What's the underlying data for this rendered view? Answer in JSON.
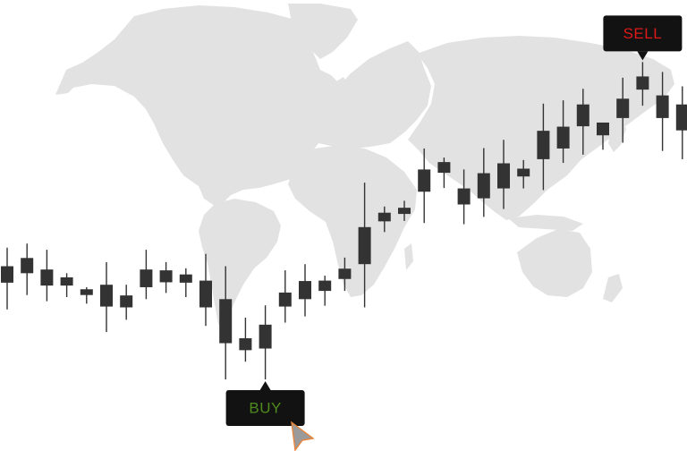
{
  "colors": {
    "background": "#ffffff",
    "map": "#e2e2e2",
    "candle": "#333333",
    "tag_bg": "#121212",
    "sell_text": "#e01818",
    "buy_text": "#4f8a1e",
    "cursor_fill": "#9a9a9a",
    "cursor_stroke": "#e8833a"
  },
  "annotations": {
    "sell": {
      "label": "SELL"
    },
    "buy": {
      "label": "BUY"
    }
  },
  "icons": {
    "cursor": "pointer-cursor-icon",
    "background": "world-map"
  },
  "chart_data": {
    "type": "candlestick",
    "title": "",
    "xlabel": "",
    "ylabel": "",
    "grid": false,
    "legend": "none",
    "ylim": [
      0,
      100
    ],
    "candles": [
      {
        "o": 33.5,
        "h": 42.0,
        "l": 27.0,
        "c": 37.5
      },
      {
        "o": 35.8,
        "h": 43.0,
        "l": 30.5,
        "c": 39.5
      },
      {
        "o": 36.7,
        "h": 41.5,
        "l": 29.0,
        "c": 32.8
      },
      {
        "o": 34.8,
        "h": 35.8,
        "l": 30.0,
        "c": 32.8
      },
      {
        "o": 30.5,
        "h": 32.4,
        "l": 28.4,
        "c": 31.9
      },
      {
        "o": 33.0,
        "h": 38.5,
        "l": 21.5,
        "c": 27.7
      },
      {
        "o": 27.5,
        "h": 33.0,
        "l": 24.5,
        "c": 30.4
      },
      {
        "o": 36.7,
        "h": 41.5,
        "l": 29.5,
        "c": 32.4
      },
      {
        "o": 36.5,
        "h": 38.5,
        "l": 31.0,
        "c": 33.6
      },
      {
        "o": 33.5,
        "h": 37.0,
        "l": 30.0,
        "c": 35.5
      },
      {
        "o": 34.0,
        "h": 40.5,
        "l": 23.0,
        "c": 27.5
      },
      {
        "o": 29.5,
        "h": 37.5,
        "l": 10.0,
        "c": 18.8
      },
      {
        "o": 20.0,
        "h": 25.0,
        "l": 14.3,
        "c": 17.1
      },
      {
        "o": 17.5,
        "h": 28.0,
        "l": 10.0,
        "c": 23.3
      },
      {
        "o": 27.7,
        "h": 36.5,
        "l": 23.8,
        "c": 31.1
      },
      {
        "o": 29.5,
        "h": 38.0,
        "l": 25.3,
        "c": 33.9
      },
      {
        "o": 31.5,
        "h": 35.2,
        "l": 27.9,
        "c": 34.0
      },
      {
        "o": 34.4,
        "h": 39.6,
        "l": 31.5,
        "c": 36.9
      },
      {
        "o": 38.0,
        "h": 57.8,
        "l": 27.5,
        "c": 47.0
      },
      {
        "o": 48.4,
        "h": 52.0,
        "l": 45.8,
        "c": 50.5
      },
      {
        "o": 50.2,
        "h": 53.4,
        "l": 48.5,
        "c": 51.7
      },
      {
        "o": 55.6,
        "h": 66.1,
        "l": 48.0,
        "c": 61.0
      },
      {
        "o": 60.2,
        "h": 63.9,
        "l": 56.5,
        "c": 62.8
      },
      {
        "o": 52.5,
        "h": 61.0,
        "l": 47.7,
        "c": 56.4
      },
      {
        "o": 54.0,
        "h": 66.2,
        "l": 49.5,
        "c": 60.1
      },
      {
        "o": 56.4,
        "h": 68.2,
        "l": 51.4,
        "c": 62.5
      },
      {
        "o": 59.3,
        "h": 63.3,
        "l": 56.4,
        "c": 61.2
      },
      {
        "o": 63.5,
        "h": 77.0,
        "l": 56.0,
        "c": 70.4
      },
      {
        "o": 66.1,
        "h": 77.8,
        "l": 62.6,
        "c": 71.4
      },
      {
        "o": 71.5,
        "h": 80.6,
        "l": 64.6,
        "c": 76.8
      },
      {
        "o": 69.3,
        "h": 72.2,
        "l": 65.8,
        "c": 72.4
      },
      {
        "o": 73.5,
        "h": 83.3,
        "l": 67.5,
        "c": 78.2
      },
      {
        "o": 80.4,
        "h": 87.1,
        "l": 76.5,
        "c": 83.6
      },
      {
        "o": 79.0,
        "h": 84.7,
        "l": 65.5,
        "c": 73.5
      },
      {
        "o": 76.8,
        "h": 81.2,
        "l": 63.5,
        "c": 70.5
      },
      {
        "o": 76.0,
        "h": 77.5,
        "l": 74.5,
        "c": 78.5
      }
    ],
    "markers": [
      {
        "label": "BUY",
        "candle_index": 13,
        "position": "below"
      },
      {
        "label": "SELL",
        "candle_index": 32,
        "position": "above"
      }
    ]
  }
}
